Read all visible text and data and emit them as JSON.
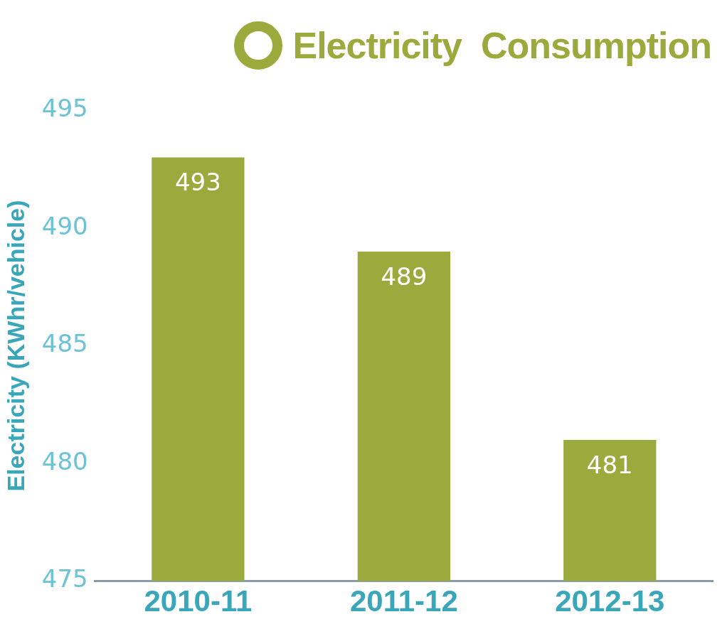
{
  "chart_data": {
    "type": "bar",
    "title": "Electricity  Consumption",
    "ylabel": "Electricity (KWhr/vehicle)",
    "categories": [
      "2010-11",
      "2011-12",
      "2012-13"
    ],
    "values": [
      493,
      489,
      481
    ],
    "color": "#9aaa3c",
    "ylim": [
      475,
      495
    ],
    "yticks": [
      475,
      480,
      485,
      490,
      495
    ],
    "grid": false,
    "legend": false,
    "data_labels": true
  }
}
